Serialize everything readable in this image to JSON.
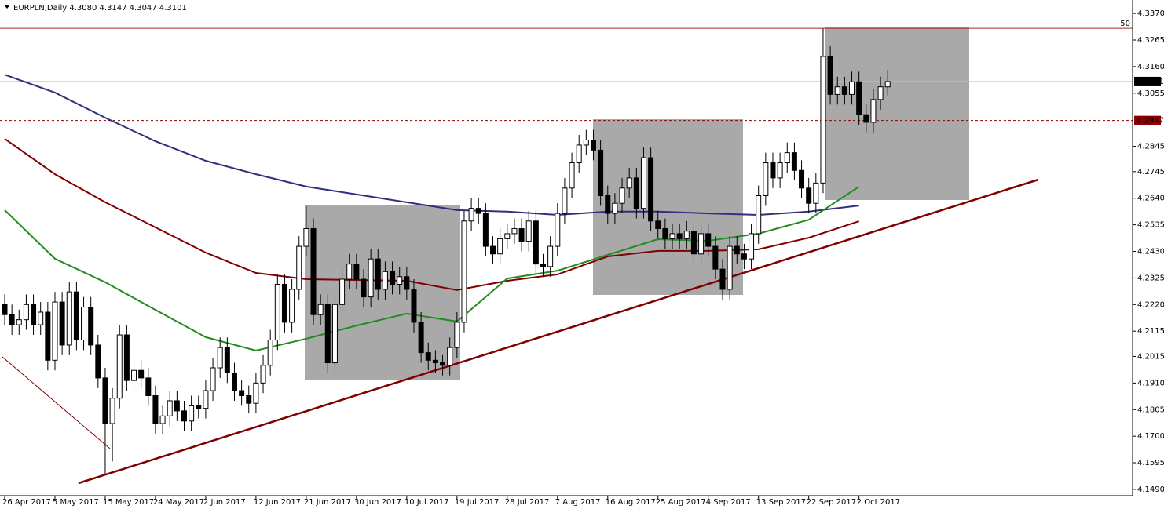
{
  "chart_data": {
    "type": "candlestick",
    "title": "EURPLN,Daily  4.3080 4.3147 4.3047 4.3101",
    "categories": [
      "26 Apr 2017",
      null,
      null,
      null,
      null,
      null,
      null,
      "5 May 2017",
      null,
      null,
      null,
      null,
      null,
      null,
      "15 May 2017",
      null,
      null,
      null,
      null,
      null,
      null,
      "24 May 2017",
      null,
      null,
      null,
      null,
      null,
      null,
      "2 Jun 2017",
      null,
      null,
      null,
      null,
      null,
      null,
      "12 Jun 2017",
      null,
      null,
      null,
      null,
      null,
      null,
      "21 Jun 2017",
      null,
      null,
      null,
      null,
      null,
      null,
      "30 Jun 2017",
      null,
      null,
      null,
      null,
      null,
      null,
      "10 Jul 2017",
      null,
      null,
      null,
      null,
      null,
      null,
      "19 Jul 2017",
      null,
      null,
      null,
      null,
      null,
      null,
      "28 Jul 2017",
      null,
      null,
      null,
      null,
      null,
      null,
      "7 Aug 2017",
      null,
      null,
      null,
      null,
      null,
      null,
      "16 Aug 2017",
      null,
      null,
      null,
      null,
      null,
      null,
      "25 Aug 2017",
      null,
      null,
      null,
      null,
      null,
      null,
      "4 Sep 2017",
      null,
      null,
      null,
      null,
      null,
      null,
      "13 Sep 2017",
      null,
      null,
      null,
      null,
      null,
      null,
      "22 Sep 2017",
      null,
      null,
      null,
      null,
      null,
      null,
      "2 Oct 2017",
      null,
      null,
      null,
      null
    ],
    "open": [
      4.222,
      4.218,
      4.214,
      4.216,
      4.222,
      4.214,
      4.219,
      4.2,
      4.223,
      4.206,
      4.227,
      4.208,
      4.221,
      4.206,
      4.193,
      4.175,
      4.185,
      4.21,
      4.192,
      4.196,
      4.193,
      4.186,
      4.175,
      4.178,
      4.184,
      4.18,
      4.176,
      4.182,
      4.181,
      4.188,
      4.197,
      4.205,
      4.195,
      4.188,
      4.186,
      4.183,
      4.191,
      4.198,
      4.208,
      4.23,
      4.215,
      4.228,
      4.245,
      4.252,
      4.218,
      4.222,
      4.199,
      4.222,
      4.232,
      4.238,
      4.232,
      4.225,
      4.24,
      4.228,
      4.235,
      4.23,
      4.233,
      4.228,
      4.215,
      4.203,
      4.2,
      4.199,
      4.198,
      4.205,
      4.215,
      4.255,
      4.26,
      4.258,
      4.245,
      4.242,
      4.248,
      4.25,
      4.252,
      4.247,
      4.255,
      4.238,
      4.237,
      4.245,
      4.258,
      4.268,
      4.278,
      4.285,
      4.287,
      4.283,
      4.265,
      4.258,
      4.262,
      4.268,
      4.272,
      4.26,
      4.28,
      4.255,
      4.252,
      4.248,
      4.25,
      4.248,
      4.251,
      4.242,
      4.25,
      4.245,
      4.236,
      4.228,
      4.245,
      4.242,
      4.24,
      4.25,
      4.265,
      4.278,
      4.272,
      4.278,
      4.282,
      4.275,
      4.268,
      4.262,
      4.27,
      4.32,
      4.305,
      4.308,
      4.305,
      4.31,
      4.297,
      4.294,
      4.303,
      4.308
    ],
    "high": [
      4.226,
      4.222,
      4.22,
      4.226,
      4.226,
      4.223,
      4.223,
      4.227,
      4.227,
      4.231,
      4.231,
      4.225,
      4.225,
      4.21,
      4.197,
      4.189,
      4.214,
      4.214,
      4.2,
      4.2,
      4.197,
      4.19,
      4.182,
      4.188,
      4.188,
      4.184,
      4.186,
      4.186,
      4.192,
      4.201,
      4.209,
      4.209,
      4.199,
      4.192,
      4.19,
      4.195,
      4.202,
      4.212,
      4.234,
      4.234,
      4.232,
      4.249,
      4.261,
      4.256,
      4.226,
      4.226,
      4.226,
      4.236,
      4.242,
      4.242,
      4.236,
      4.244,
      4.244,
      4.239,
      4.239,
      4.237,
      4.237,
      4.232,
      4.219,
      4.207,
      4.204,
      4.202,
      4.209,
      4.219,
      4.259,
      4.264,
      4.264,
      4.262,
      4.249,
      4.252,
      4.254,
      4.256,
      4.256,
      4.259,
      4.259,
      4.242,
      4.249,
      4.262,
      4.272,
      4.282,
      4.289,
      4.291,
      4.291,
      4.287,
      4.269,
      4.266,
      4.272,
      4.276,
      4.276,
      4.284,
      4.284,
      4.259,
      4.256,
      4.254,
      4.254,
      4.255,
      4.255,
      4.254,
      4.254,
      4.249,
      4.24,
      4.249,
      4.249,
      4.246,
      4.254,
      4.269,
      4.282,
      4.282,
      4.282,
      4.286,
      4.286,
      4.279,
      4.272,
      4.274,
      4.331,
      4.324,
      4.312,
      4.312,
      4.314,
      4.314,
      4.301,
      4.307,
      4.312,
      4.3147
    ],
    "low": [
      4.214,
      4.21,
      4.21,
      4.212,
      4.21,
      4.21,
      4.196,
      4.196,
      4.202,
      4.202,
      4.204,
      4.204,
      4.202,
      4.189,
      4.155,
      4.16,
      4.181,
      4.188,
      4.188,
      4.189,
      4.182,
      4.171,
      4.171,
      4.174,
      4.176,
      4.172,
      4.172,
      4.177,
      4.177,
      4.184,
      4.193,
      4.191,
      4.184,
      4.182,
      4.179,
      4.179,
      4.187,
      4.194,
      4.204,
      4.211,
      4.211,
      4.224,
      4.241,
      4.214,
      4.214,
      4.195,
      4.195,
      4.218,
      4.228,
      4.228,
      4.221,
      4.221,
      4.224,
      4.224,
      4.226,
      4.226,
      4.224,
      4.211,
      4.199,
      4.196,
      4.195,
      4.194,
      4.194,
      4.201,
      4.211,
      4.251,
      4.254,
      4.241,
      4.238,
      4.238,
      4.244,
      4.246,
      4.243,
      4.243,
      4.234,
      4.233,
      4.233,
      4.241,
      4.254,
      4.264,
      4.274,
      4.281,
      4.279,
      4.261,
      4.254,
      4.254,
      4.258,
      4.264,
      4.256,
      4.256,
      4.251,
      4.248,
      4.244,
      4.244,
      4.244,
      4.244,
      4.238,
      4.238,
      4.241,
      4.232,
      4.224,
      4.224,
      4.238,
      4.236,
      4.236,
      4.246,
      4.261,
      4.268,
      4.268,
      4.274,
      4.271,
      4.264,
      4.258,
      4.258,
      4.266,
      4.301,
      4.301,
      4.301,
      4.301,
      4.293,
      4.29,
      4.29,
      4.299,
      4.3047
    ],
    "close": [
      4.218,
      4.214,
      4.216,
      4.222,
      4.214,
      4.219,
      4.2,
      4.223,
      4.206,
      4.227,
      4.208,
      4.221,
      4.206,
      4.193,
      4.175,
      4.185,
      4.21,
      4.192,
      4.196,
      4.193,
      4.186,
      4.175,
      4.178,
      4.184,
      4.18,
      4.176,
      4.182,
      4.181,
      4.188,
      4.197,
      4.205,
      4.195,
      4.188,
      4.186,
      4.183,
      4.191,
      4.198,
      4.208,
      4.23,
      4.215,
      4.228,
      4.245,
      4.252,
      4.218,
      4.222,
      4.199,
      4.222,
      4.232,
      4.238,
      4.232,
      4.225,
      4.24,
      4.228,
      4.235,
      4.23,
      4.233,
      4.228,
      4.215,
      4.203,
      4.2,
      4.199,
      4.198,
      4.205,
      4.215,
      4.255,
      4.26,
      4.258,
      4.245,
      4.242,
      4.248,
      4.25,
      4.252,
      4.247,
      4.255,
      4.238,
      4.237,
      4.245,
      4.258,
      4.268,
      4.278,
      4.285,
      4.287,
      4.283,
      4.265,
      4.258,
      4.262,
      4.268,
      4.272,
      4.26,
      4.28,
      4.255,
      4.252,
      4.248,
      4.25,
      4.248,
      4.251,
      4.242,
      4.25,
      4.245,
      4.236,
      4.228,
      4.245,
      4.242,
      4.24,
      4.25,
      4.265,
      4.278,
      4.272,
      4.278,
      4.282,
      4.275,
      4.268,
      4.262,
      4.27,
      4.32,
      4.305,
      4.308,
      4.305,
      4.31,
      4.297,
      4.294,
      4.303,
      4.308,
      4.3101
    ],
    "series": [
      {
        "color": "#2f2f7f",
        "x": [
          "26 Apr 2017",
          "5 May 2017",
          "15 May 2017",
          "24 May 2017",
          "2 Jun 2017",
          "12 Jun 2017",
          "21 Jun 2017",
          "30 Jun 2017",
          "10 Jul 2017",
          "19 Jul 2017",
          "28 Jul 2017",
          "7 Aug 2017",
          "16 Aug 2017",
          "25 Aug 2017",
          "4 Sep 2017",
          "13 Sep 2017",
          "22 Sep 2017",
          "2 Oct 2017"
        ],
        "values": [
          4.3128,
          4.3057,
          4.2958,
          4.2865,
          4.2788,
          4.2735,
          4.2686,
          4.2655,
          4.2624,
          4.2593,
          4.2587,
          4.2574,
          4.2587,
          4.2587,
          4.258,
          4.2574,
          4.2587,
          4.2611
        ]
      },
      {
        "color": "#800000",
        "x": [
          "26 Apr 2017",
          "5 May 2017",
          "15 May 2017",
          "24 May 2017",
          "2 Jun 2017",
          "12 Jun 2017",
          "21 Jun 2017",
          "30 Jun 2017",
          "10 Jul 2017",
          "19 Jul 2017",
          "28 Jul 2017",
          "7 Aug 2017",
          "16 Aug 2017",
          "25 Aug 2017",
          "4 Sep 2017",
          "13 Sep 2017",
          "22 Sep 2017",
          "2 Oct 2017"
        ],
        "values": [
          4.2875,
          4.2735,
          4.2624,
          4.2525,
          4.2425,
          4.2345,
          4.232,
          4.2317,
          4.2314,
          4.2277,
          4.2314,
          4.2339,
          4.241,
          4.2432,
          4.2432,
          4.2438,
          4.2484,
          4.2549
        ]
      },
      {
        "color": "#228b22",
        "x": [
          "26 Apr 2017",
          "5 May 2017",
          "15 May 2017",
          "24 May 2017",
          "2 Jun 2017",
          "12 Jun 2017",
          "21 Jun 2017",
          "30 Jun 2017",
          "10 Jul 2017",
          "19 Jul 2017",
          "28 Jul 2017",
          "7 Aug 2017",
          "16 Aug 2017",
          "25 Aug 2017",
          "4 Sep 2017",
          "13 Sep 2017",
          "22 Sep 2017",
          "2 Oct 2017"
        ],
        "values": [
          4.2593,
          4.2401,
          4.2308,
          4.2199,
          4.2091,
          4.2038,
          4.2085,
          4.2137,
          4.2184,
          4.2153,
          4.2323,
          4.2354,
          4.2416,
          4.2478,
          4.2472,
          4.25,
          4.2555,
          4.2686
        ]
      }
    ],
    "ylim": [
      4.1465,
      4.3423
    ],
    "yticks": [
      {
        "value": 4.337,
        "label": "4.3370"
      },
      4.3265,
      {
        "value": 4.316,
        "label": "4.3160"
      },
      4.3055,
      4.2845,
      4.2745,
      {
        "value": 4.264,
        "label": "4.2640"
      },
      4.2535,
      {
        "value": 4.243,
        "label": "4.2430"
      },
      4.2325,
      {
        "value": 4.222,
        "label": "4.2220"
      },
      4.2115,
      4.2015,
      {
        "value": 4.191,
        "label": "4.1910"
      },
      4.1805,
      {
        "value": 4.17,
        "label": "4.1700"
      },
      4.1595,
      {
        "value": 4.149,
        "label": "4.1490"
      }
    ],
    "current_price": 4.3101,
    "level_line": 4.2947,
    "hline": {
      "value": 4.3311,
      "label": "50"
    }
  }
}
